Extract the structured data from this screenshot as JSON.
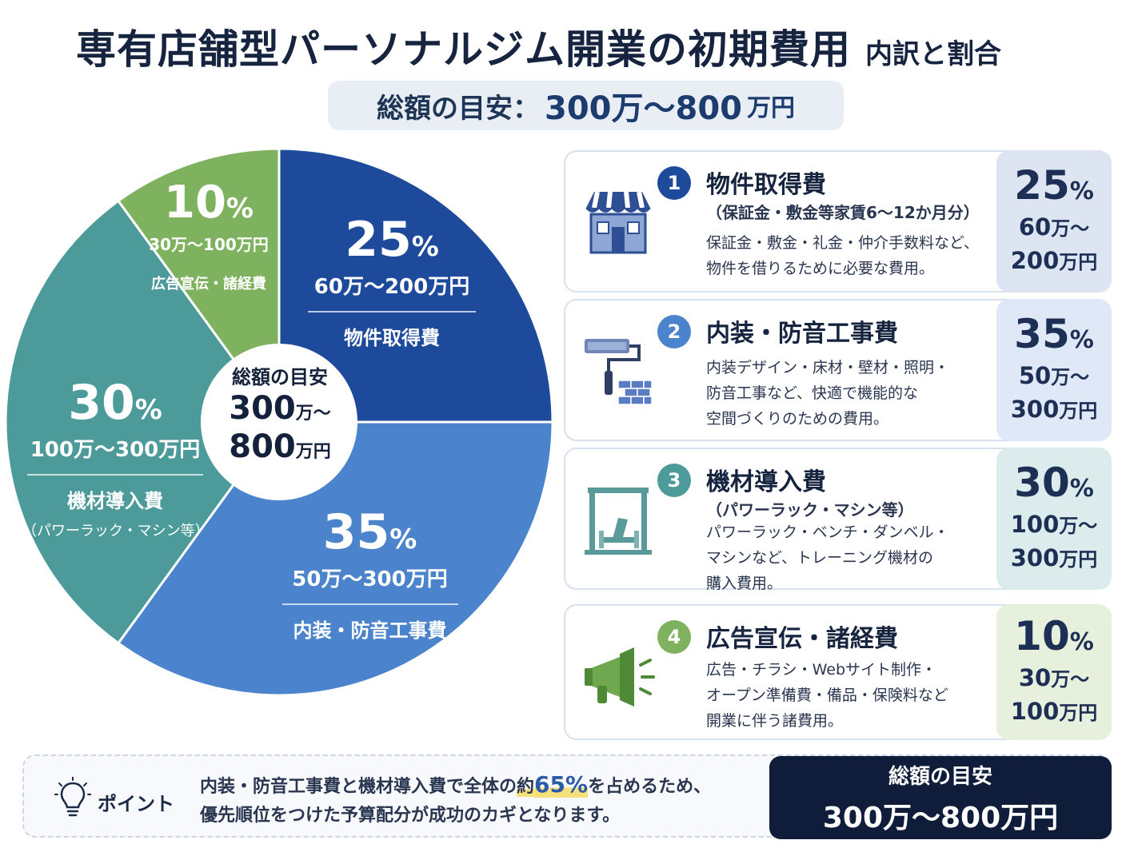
{
  "title": {
    "main": "専有店舗型パーソナルジム開業の初期費用",
    "sub": "内訳と割合"
  },
  "total_banner": {
    "label": "総額の目安：",
    "amount": "300万〜800",
    "yen": "万円"
  },
  "center": {
    "label": "総額の目安",
    "line1_num": "300",
    "line1_unit": "万〜",
    "line2_num": "800",
    "line2_unit": "万円"
  },
  "chart_data": {
    "type": "pie",
    "title": "",
    "unit_label": "%",
    "slices": [
      {
        "name": "物件取得費",
        "value": 25,
        "range": "60万〜200万円",
        "color": "#1e4a9c"
      },
      {
        "name": "内装・防音工事費",
        "value": 35,
        "range": "50万〜300万円",
        "color": "#4b83cc"
      },
      {
        "name": "機材導入費",
        "note": "（パワーラック・マシン等）",
        "value": 30,
        "range": "100万〜300万円",
        "color": "#4d9a9a"
      },
      {
        "name": "広告宣伝・諸経費",
        "value": 10,
        "range": "30万〜100万円",
        "color": "#7fb25e"
      }
    ]
  },
  "cards": [
    {
      "num": "1",
      "title": "物件取得費",
      "subtitle": "（保証金・敷金等家賃6〜12か月分）",
      "desc": [
        "保証金・敷金・礼金・仲介手数料など、",
        "物件を借りるために必要な費用。"
      ],
      "pct": "25",
      "range1": "60",
      "range2": "200",
      "color": "#1e4a9c",
      "box": "#dde4f2",
      "icon": "storefront-icon"
    },
    {
      "num": "2",
      "title": "内装・防音工事費",
      "subtitle": "",
      "desc": [
        "内装デザイン・床材・壁材・照明・",
        "防音工事など、快適で機能的な",
        "空間づくりのための費用。"
      ],
      "pct": "35",
      "range1": "50",
      "range2": "300",
      "color": "#4b83cc",
      "box": "#dfe8f6",
      "icon": "paint-roller-icon"
    },
    {
      "num": "3",
      "title": "機材導入費",
      "subtitle": "（パワーラック・マシン等）",
      "desc": [
        "パワーラック・ベンチ・ダンベル・",
        "マシンなど、トレーニング機材の",
        "購入費用。"
      ],
      "pct": "30",
      "range1": "100",
      "range2": "300",
      "color": "#4d9a9a",
      "box": "#dcecec",
      "icon": "power-rack-icon"
    },
    {
      "num": "4",
      "title": "広告宣伝・諸経費",
      "subtitle": "",
      "desc": [
        "広告・チラシ・Webサイト制作・",
        "オープン準備費・備品・保険料など",
        "開業に伴う諸費用。"
      ],
      "pct": "10",
      "range1": "30",
      "range2": "100",
      "color": "#7fb25e",
      "box": "#e6f0dc",
      "icon": "megaphone-icon"
    }
  ],
  "common": {
    "pct_sign": "%",
    "tilde": "万〜",
    "yen": "万円"
  },
  "point": {
    "label": "ポイント",
    "line1_a": "内装・防音工事費と機材導入費で全体の",
    "line1_b": "約",
    "line1_hl": "65%",
    "line1_c": "を占めるため、",
    "line2": "優先順位をつけた予算配分が成功のカギとなります。"
  },
  "summary": {
    "label": "総額の目安",
    "value": "300万〜800万円"
  }
}
